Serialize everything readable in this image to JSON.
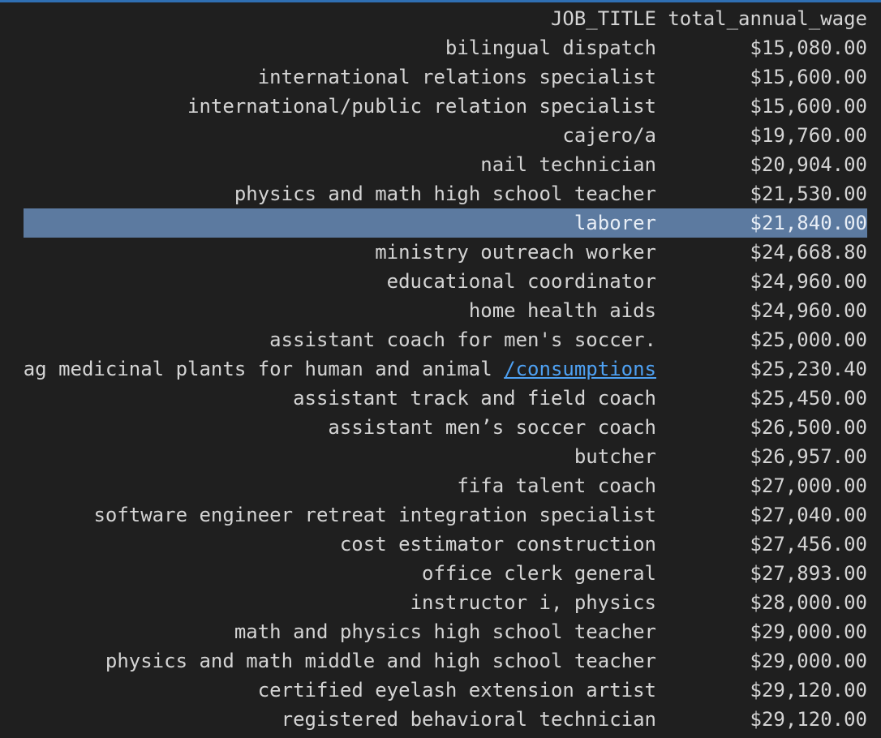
{
  "columns": {
    "title": "JOB_TITLE",
    "wage": "total_annual_wage"
  },
  "rows": [
    {
      "title": "bilingual dispatch",
      "wage": "$15,080.00"
    },
    {
      "title": "international relations specialist",
      "wage": "$15,600.00"
    },
    {
      "title": "international/public relation specialist",
      "wage": "$15,600.00"
    },
    {
      "title": "cajero/a",
      "wage": "$19,760.00"
    },
    {
      "title": "nail technician",
      "wage": "$20,904.00"
    },
    {
      "title": "physics and math high school teacher",
      "wage": "$21,530.00"
    },
    {
      "title": "laborer",
      "wage": "$21,840.00",
      "selected": true
    },
    {
      "title": "ministry outreach worker",
      "wage": "$24,668.80"
    },
    {
      "title": "educational coordinator",
      "wage": "$24,960.00"
    },
    {
      "title": "home health aids",
      "wage": "$24,960.00"
    },
    {
      "title": "assistant coach for men's soccer.",
      "wage": "$25,000.00"
    },
    {
      "title": "ag medicinal plants for human and animal ",
      "link": "/consumptions",
      "wage": "$25,230.40"
    },
    {
      "title": "assistant track and field coach",
      "wage": "$25,450.00"
    },
    {
      "title": "assistant men’s soccer coach",
      "wage": "$26,500.00"
    },
    {
      "title": "butcher",
      "wage": "$26,957.00"
    },
    {
      "title": "fifa talent coach",
      "wage": "$27,000.00"
    },
    {
      "title": "software engineer retreat integration specialist",
      "wage": "$27,040.00"
    },
    {
      "title": "cost estimator construction",
      "wage": "$27,456.00"
    },
    {
      "title": "office clerk general",
      "wage": "$27,893.00"
    },
    {
      "title": "instructor i, physics",
      "wage": "$28,000.00"
    },
    {
      "title": "math and physics high school teacher",
      "wage": "$29,000.00"
    },
    {
      "title": "physics and math middle and high school teacher",
      "wage": "$29,000.00"
    },
    {
      "title": "certified eyelash extension artist",
      "wage": "$29,120.00"
    },
    {
      "title": "registered behavioral technician",
      "wage": "$29,120.00"
    }
  ],
  "colors": {
    "background": "#1f1f1f",
    "text": "#d4d4d4",
    "selection": "#5c7aa0",
    "link": "#4ea1f3",
    "top_border": "#2f6fb3"
  }
}
